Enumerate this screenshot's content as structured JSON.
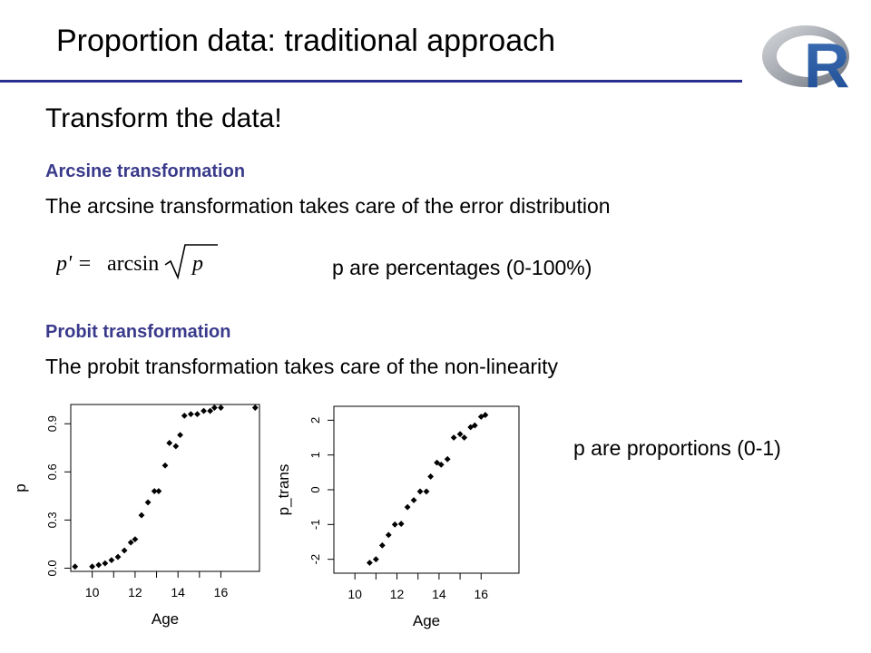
{
  "slide": {
    "title": "Proportion data: traditional approach",
    "heading": "Transform the data!",
    "arcsine": {
      "label": "Arcsine transformation",
      "description": "The arcsine transformation takes care of the error distribution",
      "formula_lhs": "p' = ",
      "formula_func": "arcsin",
      "formula_var": "p",
      "note": "p are percentages (0-100%)"
    },
    "probit": {
      "label": "Probit transformation",
      "description": "The probit transformation takes care of the non-linearity",
      "note": "p are proportions (0-1)"
    },
    "logo_letter": "R"
  },
  "chart_data": [
    {
      "type": "scatter",
      "xlabel": "Age",
      "ylabel": "p",
      "xlim": [
        9.0,
        17.8
      ],
      "ylim": [
        -0.02,
        1.02
      ],
      "xticks": [
        10,
        12,
        14,
        16
      ],
      "yticks": [
        0.0,
        0.3,
        0.6,
        0.9
      ],
      "ytick_labels": [
        "0.0",
        "0.3",
        "0.6",
        "0.9"
      ],
      "points": [
        [
          9.2,
          0.01
        ],
        [
          10.0,
          0.01
        ],
        [
          10.3,
          0.02
        ],
        [
          10.6,
          0.03
        ],
        [
          10.9,
          0.05
        ],
        [
          11.2,
          0.07
        ],
        [
          11.5,
          0.11
        ],
        [
          11.8,
          0.16
        ],
        [
          12.0,
          0.18
        ],
        [
          12.3,
          0.33
        ],
        [
          12.6,
          0.41
        ],
        [
          12.9,
          0.48
        ],
        [
          13.1,
          0.48
        ],
        [
          13.4,
          0.64
        ],
        [
          13.6,
          0.78
        ],
        [
          13.9,
          0.76
        ],
        [
          14.1,
          0.83
        ],
        [
          14.3,
          0.95
        ],
        [
          14.6,
          0.96
        ],
        [
          14.9,
          0.96
        ],
        [
          15.2,
          0.98
        ],
        [
          15.5,
          0.98
        ],
        [
          15.7,
          1.0
        ],
        [
          16.0,
          1.0
        ],
        [
          17.6,
          1.0
        ]
      ]
    },
    {
      "type": "scatter",
      "xlabel": "Age",
      "ylabel": "p_trans",
      "xlim": [
        9.0,
        17.8
      ],
      "ylim": [
        -2.4,
        2.4
      ],
      "xticks": [
        10,
        12,
        14,
        16
      ],
      "yticks": [
        -2,
        -1,
        0,
        1,
        2
      ],
      "ytick_labels": [
        "-2",
        "-1",
        "0",
        "1",
        "2"
      ],
      "points": [
        [
          10.7,
          -2.1
        ],
        [
          11.0,
          -2.0
        ],
        [
          11.3,
          -1.6
        ],
        [
          11.6,
          -1.3
        ],
        [
          11.9,
          -1.0
        ],
        [
          12.2,
          -0.98
        ],
        [
          12.5,
          -0.5
        ],
        [
          12.8,
          -0.3
        ],
        [
          13.1,
          -0.05
        ],
        [
          13.4,
          -0.05
        ],
        [
          13.6,
          0.38
        ],
        [
          13.9,
          0.78
        ],
        [
          14.1,
          0.72
        ],
        [
          14.4,
          0.88
        ],
        [
          14.7,
          1.5
        ],
        [
          15.0,
          1.6
        ],
        [
          15.2,
          1.5
        ],
        [
          15.5,
          1.8
        ],
        [
          15.7,
          1.85
        ],
        [
          16.0,
          2.1
        ],
        [
          16.2,
          2.15
        ]
      ]
    }
  ]
}
